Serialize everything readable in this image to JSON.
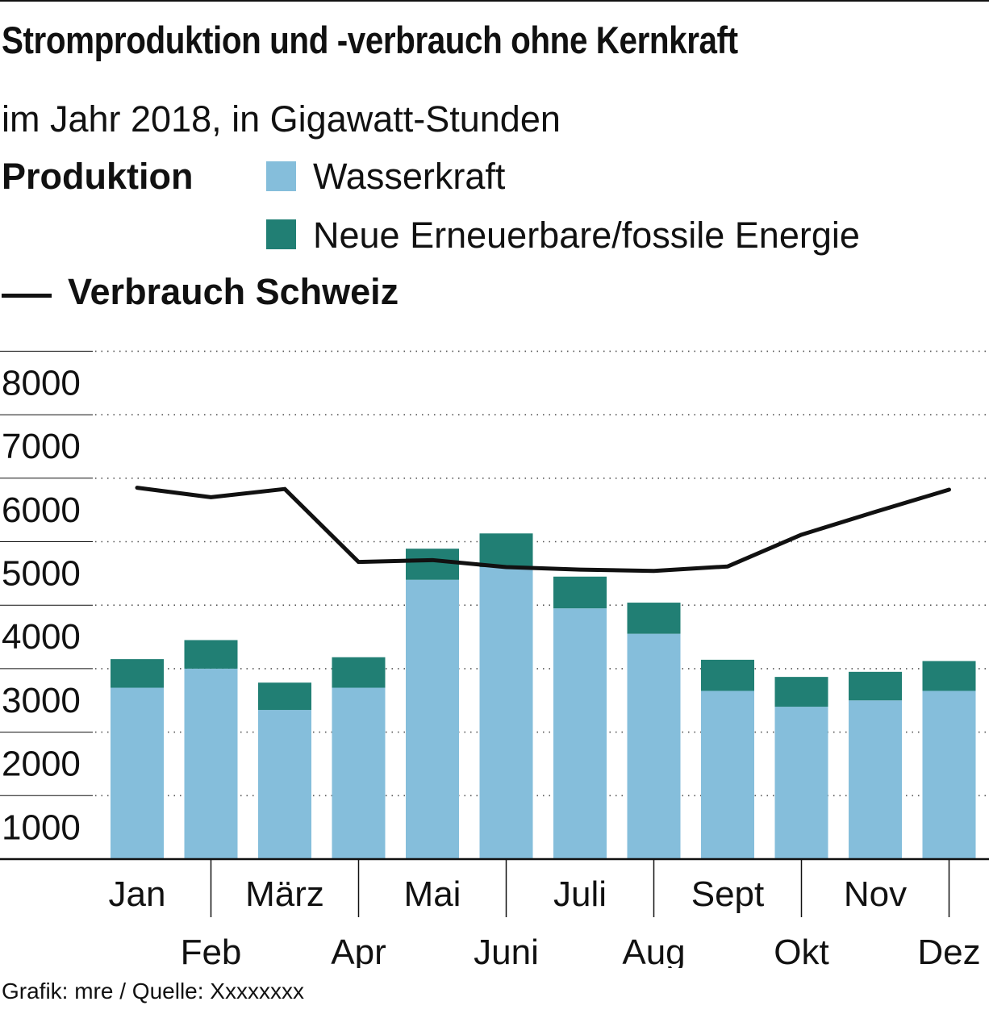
{
  "colors": {
    "hydro": "#85bedb",
    "renewable": "#217f74",
    "consumption": "#111111",
    "text": "#111111"
  },
  "header": {
    "title": "Stromproduktion und -verbrauch ohne Kernkraft",
    "subtitle": "im Jahr 2018, in Gigawatt-Stunden"
  },
  "legend": {
    "production_heading": "Produktion",
    "hydro_label": "Wasserkraft",
    "renewable_label": "Neue Erneuerbare/fossile Energie",
    "consumption_label": "Verbrauch Schweiz"
  },
  "footer": {
    "source": "Grafik: mre / Quelle: Xxxxxxxx"
  },
  "chart_data": {
    "type": "bar",
    "stacked": true,
    "title": "Stromproduktion und -verbrauch ohne Kernkraft",
    "subtitle": "im Jahr 2018, in Gigawatt-Stunden",
    "categories": [
      "Jan",
      "Feb",
      "März",
      "Apr",
      "Mai",
      "Juni",
      "Juli",
      "Aug",
      "Sept",
      "Okt",
      "Nov",
      "Dez"
    ],
    "series": [
      {
        "name": "Wasserkraft",
        "kind": "bar",
        "values": [
          2700,
          3000,
          2350,
          2700,
          4400,
          4600,
          3950,
          3550,
          2650,
          2400,
          2500,
          2650
        ]
      },
      {
        "name": "Neue Erneuerbare/fossile Energie",
        "kind": "bar",
        "values": [
          450,
          450,
          430,
          480,
          490,
          530,
          500,
          490,
          490,
          470,
          450,
          470
        ]
      },
      {
        "name": "Verbrauch Schweiz",
        "kind": "line",
        "values": [
          5850,
          5700,
          5830,
          4680,
          4710,
          4600,
          4560,
          4540,
          4610,
          5110,
          5470,
          5820
        ]
      }
    ],
    "y_ticks": [
      1000,
      2000,
      3000,
      4000,
      5000,
      6000,
      7000,
      8000
    ],
    "ylim": [
      0,
      8000
    ],
    "xlabel": "",
    "ylabel": "",
    "grid": true
  }
}
